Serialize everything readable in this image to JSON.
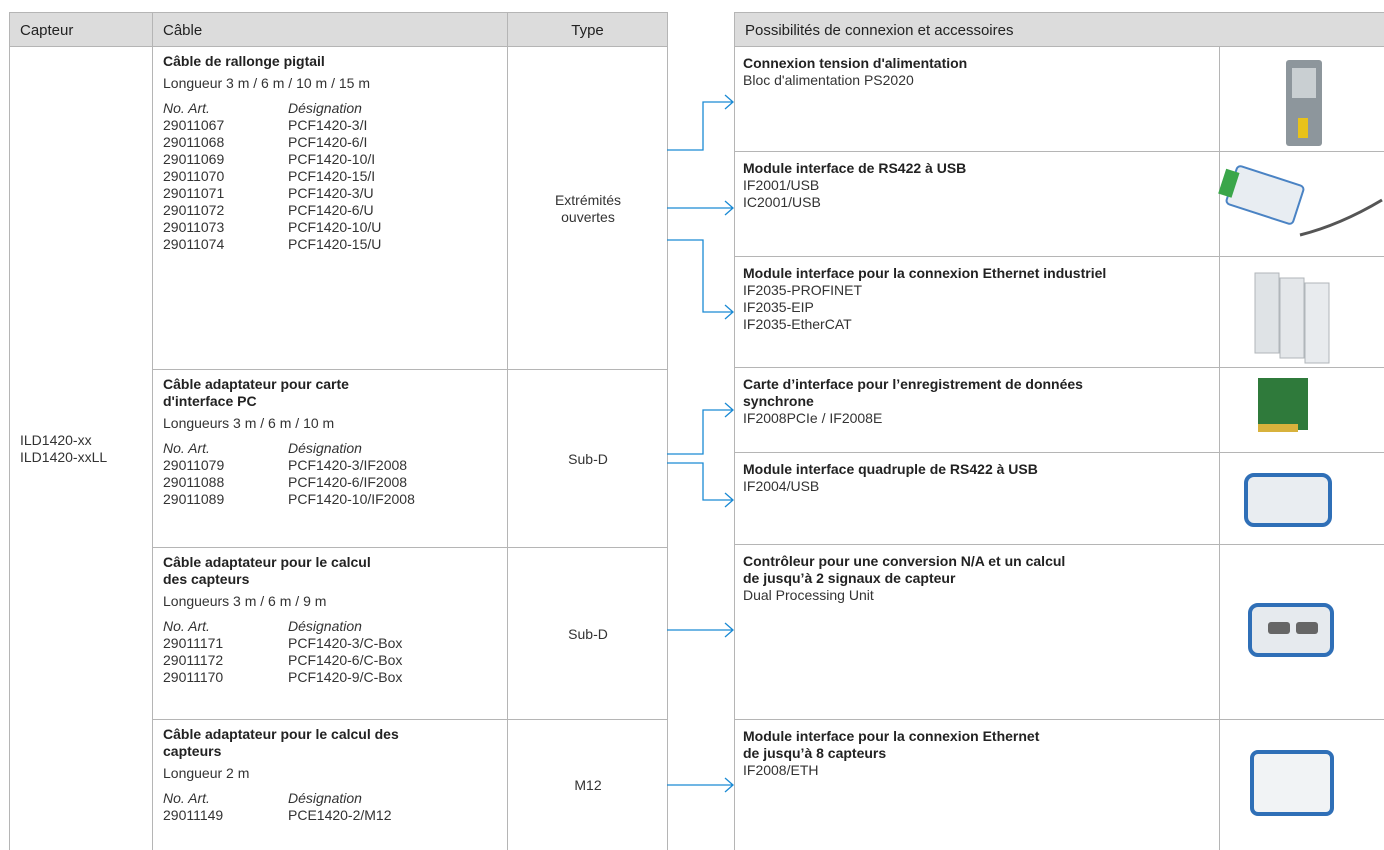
{
  "left_table": {
    "headers": [
      "Capteur",
      "Câble",
      "Type"
    ],
    "sensor": [
      "ILD1420-xx",
      "ILD1420-xxLL"
    ],
    "rows": [
      {
        "title": [
          "Câble de rallonge pigtail"
        ],
        "length": "Longueur 3 m / 6 m / 10 m / 15 m",
        "col_headers": [
          "No. Art.",
          "Désignation"
        ],
        "items": [
          [
            "29011067",
            "PCF1420-3/I"
          ],
          [
            "29011068",
            "PCF1420-6/I"
          ],
          [
            "29011069",
            "PCF1420-10/I"
          ],
          [
            "29011070",
            "PCF1420-15/I"
          ],
          [
            "29011071",
            "PCF1420-3/U"
          ],
          [
            "29011072",
            "PCF1420-6/U"
          ],
          [
            "29011073",
            "PCF1420-10/U"
          ],
          [
            "29011074",
            "PCF1420-15/U"
          ]
        ],
        "type": [
          "Extrémités",
          "ouvertes"
        ]
      },
      {
        "title": [
          "Câble adaptateur pour carte",
          "d'interface PC"
        ],
        "length": "Longueurs 3 m / 6 m / 10 m",
        "col_headers": [
          "No. Art.",
          "Désignation"
        ],
        "items": [
          [
            "29011079",
            "PCF1420-3/IF2008"
          ],
          [
            "29011088",
            "PCF1420-6/IF2008"
          ],
          [
            "29011089",
            "PCF1420-10/IF2008"
          ]
        ],
        "type": [
          "Sub-D"
        ]
      },
      {
        "title": [
          "Câble adaptateur pour le calcul",
          "des capteurs"
        ],
        "length": "Longueurs 3 m / 6 m / 9 m",
        "col_headers": [
          "No. Art.",
          "Désignation"
        ],
        "items": [
          [
            "29011171",
            "PCF1420-3/C-Box"
          ],
          [
            "29011172",
            "PCF1420-6/C-Box"
          ],
          [
            "29011170",
            "PCF1420-9/C-Box"
          ]
        ],
        "type": [
          "Sub-D"
        ]
      },
      {
        "title": [
          "Câble adaptateur pour le calcul des",
          "capteurs"
        ],
        "length": "Longueur 2 m",
        "col_headers": [
          "No. Art.",
          "Désignation"
        ],
        "items": [
          [
            "29011149",
            "PCE1420-2/M12"
          ]
        ],
        "type": [
          "M12"
        ]
      }
    ]
  },
  "right_table": {
    "header": "Possibilités de connexion et accessoires",
    "rows": [
      {
        "title": [
          "Connexion tension d'alimentation"
        ],
        "lines": [
          "Bloc d'alimentation PS2020"
        ]
      },
      {
        "title": [
          "Module interface de RS422 à USB"
        ],
        "lines": [
          "IF2001/USB",
          "IC2001/USB"
        ]
      },
      {
        "title": [
          "Module interface pour la connexion Ethernet industriel"
        ],
        "lines": [
          "IF2035-PROFINET",
          "IF2035-EIP",
          "IF2035-EtherCAT"
        ]
      },
      {
        "title": [
          "Carte d’interface pour l’enregistrement de données",
          "synchrone"
        ],
        "lines": [
          "IF2008PCIe / IF2008E"
        ]
      },
      {
        "title": [
          "Module interface quadruple de RS422 à USB"
        ],
        "lines": [
          "IF2004/USB"
        ]
      },
      {
        "title": [
          "Contrôleur pour une conversion N/A et un calcul",
          "de jusqu’à 2 signaux de capteur"
        ],
        "lines": [
          "Dual Processing Unit"
        ]
      },
      {
        "title": [
          "Module interface pour la connexion Ethernet",
          "de jusqu’à 8 capteurs"
        ],
        "lines": [
          "IF2008/ETH"
        ]
      }
    ]
  }
}
